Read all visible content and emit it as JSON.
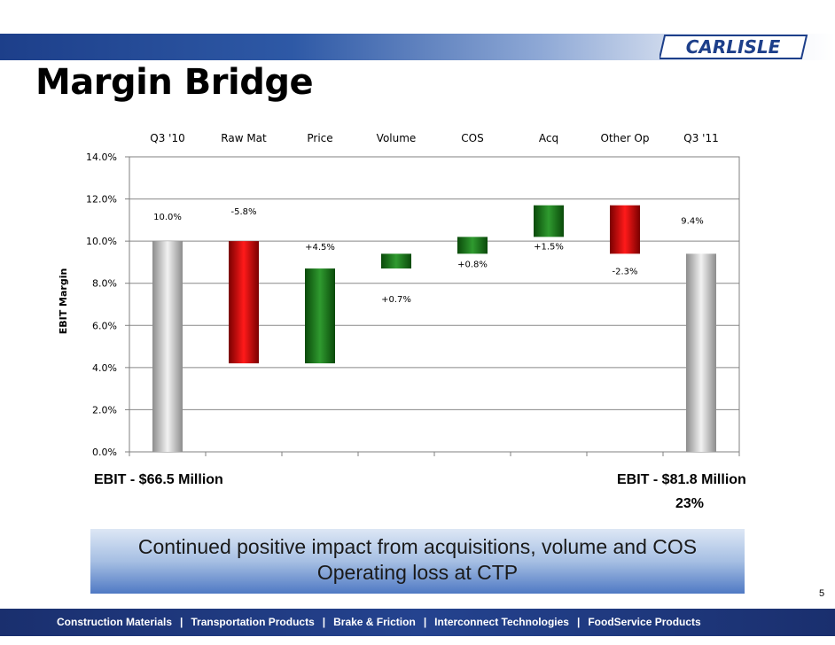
{
  "title": "Margin Bridge",
  "logo_text": "CARLISLE",
  "chart_data": {
    "type": "bar",
    "subtype": "waterfall",
    "categories": [
      "Q3 '10",
      "Raw Mat",
      "Price",
      "Volume",
      "COS",
      "Acq",
      "Other Op",
      "Q3 '11"
    ],
    "bars": [
      {
        "category": "Q3 '10",
        "start": 0,
        "end": 10.0,
        "kind": "total",
        "label": "10.0%"
      },
      {
        "category": "Raw Mat",
        "start": 10.0,
        "end": 4.2,
        "kind": "decrease",
        "label": "-5.8%"
      },
      {
        "category": "Price",
        "start": 4.2,
        "end": 8.7,
        "kind": "increase",
        "label": "+4.5%"
      },
      {
        "category": "Volume",
        "start": 8.7,
        "end": 9.4,
        "kind": "increase",
        "label": "+0.7%"
      },
      {
        "category": "COS",
        "start": 9.4,
        "end": 10.2,
        "kind": "increase",
        "label": "+0.8%"
      },
      {
        "category": "Acq",
        "start": 10.2,
        "end": 11.7,
        "kind": "increase",
        "label": "+1.5%"
      },
      {
        "category": "Other Op",
        "start": 11.7,
        "end": 9.4,
        "kind": "decrease",
        "label": "-2.3%"
      },
      {
        "category": "Q3 '11",
        "start": 0,
        "end": 9.4,
        "kind": "total",
        "label": "9.4%"
      }
    ],
    "yticks": [
      "14.0%",
      "12.0%",
      "10.0%",
      "8.0%",
      "6.0%",
      "4.0%",
      "2.0%",
      "0.0%"
    ],
    "ytick_values": [
      14,
      12,
      10,
      8,
      6,
      4,
      2,
      0
    ],
    "ylabel": "EBIT Margin",
    "ylim": [
      0,
      14
    ],
    "grid": true,
    "colors": {
      "total": "#a9a9a9",
      "increase": "#1e7a1e",
      "decrease": "#cc0000",
      "grid": "#888888",
      "axis": "#808080"
    }
  },
  "ebit_left": "EBIT - $66.5 Million",
  "ebit_right": "EBIT - $81.8 Million",
  "growth": "23%",
  "banner": {
    "line1": "Continued positive impact from acquisitions, volume and COS",
    "line2": "Operating loss at CTP"
  },
  "page_number": "5",
  "footer": {
    "items": [
      "Construction Materials",
      "Transportation Products",
      "Brake & Friction",
      "Interconnect Technologies",
      "FoodService Products"
    ],
    "separator": "|"
  }
}
